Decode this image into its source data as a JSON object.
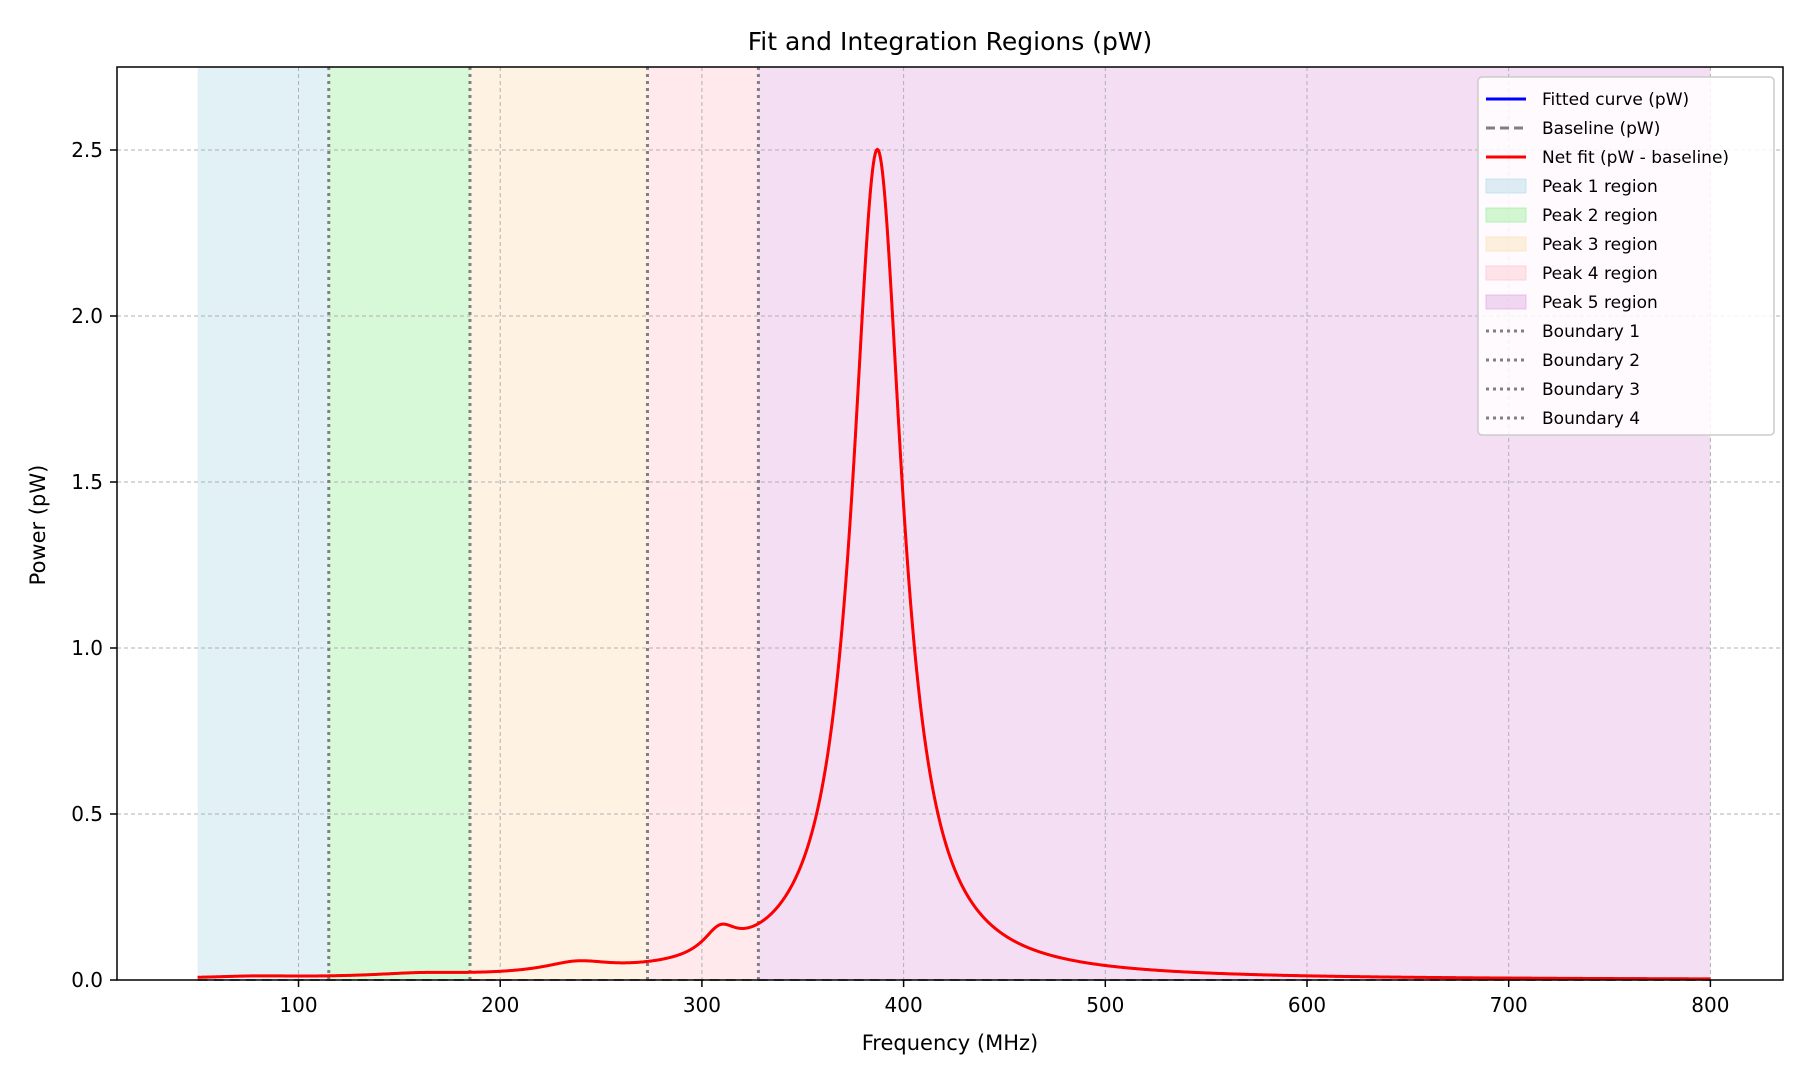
{
  "chart_data": {
    "type": "line",
    "title": "Fit and Integration Regions (pW)",
    "xlabel": "Frequency (MHz)",
    "ylabel": "Power (pW)",
    "xlim": [
      10,
      836
    ],
    "ylim": [
      0,
      2.75
    ],
    "x_ticks": [
      100,
      200,
      300,
      400,
      500,
      600,
      700,
      800
    ],
    "y_ticks": [
      0.0,
      0.5,
      1.0,
      1.5,
      2.0,
      2.5
    ],
    "x_tick_labels": [
      "100",
      "200",
      "300",
      "400",
      "500",
      "600",
      "700",
      "800"
    ],
    "y_tick_labels": [
      "0.0",
      "0.5",
      "1.0",
      "1.5",
      "2.0",
      "2.5"
    ],
    "grid": true,
    "legend_position": "top-right",
    "peak_components": [
      {
        "center": 78,
        "amplitude": 0.005,
        "width": 25
      },
      {
        "center": 160,
        "amplitude": 0.009,
        "width": 28
      },
      {
        "center": 238,
        "amplitude": 0.03,
        "width": 20
      },
      {
        "center": 309,
        "amplitude": 0.075,
        "width": 10
      },
      {
        "center": 387,
        "amplitude": 2.5,
        "width": 15
      }
    ],
    "series": [
      {
        "name": "Fitted curve (pW)",
        "style": "solid",
        "color": "#0000ff",
        "x_range": [
          50,
          800
        ]
      },
      {
        "name": "Baseline (pW)",
        "style": "dashed",
        "color": "#808080",
        "x_range": [
          50,
          800
        ],
        "value": 0.0
      },
      {
        "name": "Net fit (pW - baseline)",
        "style": "solid",
        "color": "#ff0000",
        "x_range": [
          50,
          800
        ]
      }
    ],
    "regions": [
      {
        "name": "Peak 1 region",
        "x_start": 50,
        "x_end": 115,
        "color": "#add8e6"
      },
      {
        "name": "Peak 2 region",
        "x_start": 115,
        "x_end": 185,
        "color": "#90ee90"
      },
      {
        "name": "Peak 3 region",
        "x_start": 185,
        "x_end": 273,
        "color": "#fbdeae"
      },
      {
        "name": "Peak 4 region",
        "x_start": 273,
        "x_end": 328,
        "color": "#ffc0cb"
      },
      {
        "name": "Peak 5 region",
        "x_start": 328,
        "x_end": 800,
        "color": "#dda0dd"
      }
    ],
    "boundaries": [
      {
        "name": "Boundary 1",
        "x": 115
      },
      {
        "name": "Boundary 2",
        "x": 185
      },
      {
        "name": "Boundary 3",
        "x": 273
      },
      {
        "name": "Boundary 4",
        "x": 328
      }
    ],
    "legend": [
      "Fitted curve (pW)",
      "Baseline (pW)",
      "Net fit (pW - baseline)",
      "Peak 1 region",
      "Peak 2 region",
      "Peak 3 region",
      "Peak 4 region",
      "Peak 5 region",
      "Boundary 1",
      "Boundary 2",
      "Boundary 3",
      "Boundary 4"
    ]
  }
}
